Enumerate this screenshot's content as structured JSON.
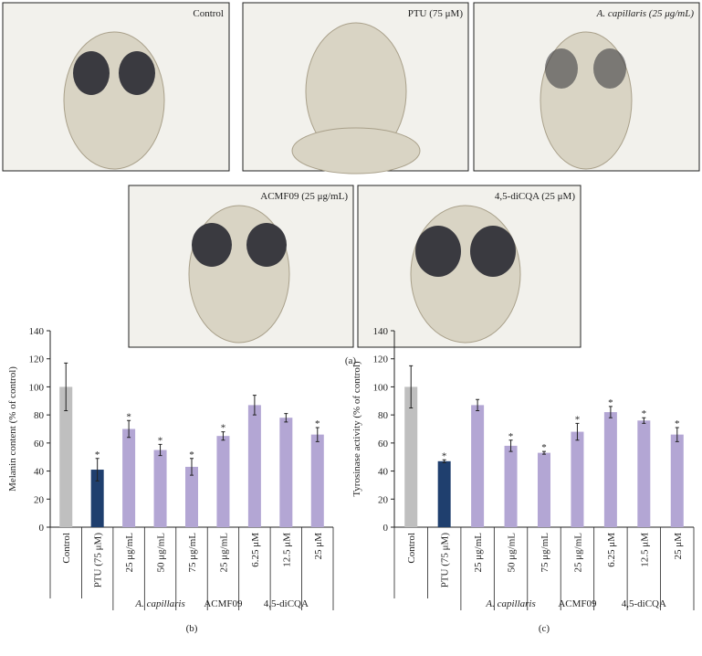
{
  "panels": [
    {
      "label": "Control"
    },
    {
      "label": "PTU (75 μM)"
    },
    {
      "label": "A. capillaris (25 μg/mL)"
    },
    {
      "label": "ACMF09 (25 μg/mL)"
    },
    {
      "label": "4,5-diCQA (25 μM)"
    }
  ],
  "figure_label": "(a)",
  "chart_data": [
    {
      "type": "bar",
      "panel_label": "(b)",
      "ylabel": "Melanin content (% of control)",
      "categories": [
        "Control",
        "PTU (75 μM)",
        "25 μg/mL",
        "50 μg/mL",
        "75 μg/mL",
        "25 μg/mL",
        "6.25 μM",
        "12.5 μM",
        "25 μM"
      ],
      "values": [
        100,
        41,
        70,
        55,
        43,
        65,
        87,
        78,
        66
      ],
      "errors": [
        17,
        8,
        6,
        4,
        6,
        3,
        7,
        3,
        5
      ],
      "significant": [
        false,
        true,
        true,
        true,
        true,
        true,
        false,
        false,
        true
      ],
      "significance_marker": "*",
      "colors": [
        "#bfbfbf",
        "#1f3f6e",
        "#b3a6d4",
        "#b3a6d4",
        "#b3a6d4",
        "#b3a6d4",
        "#b3a6d4",
        "#b3a6d4",
        "#b3a6d4"
      ],
      "groups": [
        {
          "label": "A. capillaris",
          "span": [
            2,
            4
          ]
        },
        {
          "label": "ACMF09",
          "span": [
            5,
            5
          ]
        },
        {
          "label": "4,5-diCQA",
          "span": [
            6,
            8
          ]
        }
      ],
      "ylim": [
        0,
        140
      ],
      "yticks": [
        0,
        20,
        40,
        60,
        80,
        100,
        120,
        140
      ]
    },
    {
      "type": "bar",
      "panel_label": "(c)",
      "ylabel": "Tyrosinase activity (% of control)",
      "categories": [
        "Control",
        "PTU (75 μM)",
        "25 μg/mL",
        "50 μg/mL",
        "75 μg/mL",
        "25 μg/mL",
        "6.25 μM",
        "12.5 μM",
        "25 μM"
      ],
      "values": [
        100,
        47,
        87,
        58,
        53,
        68,
        82,
        76,
        66
      ],
      "errors": [
        15,
        1,
        4,
        4,
        1,
        6,
        4,
        2,
        5
      ],
      "significant": [
        false,
        true,
        false,
        true,
        true,
        true,
        true,
        true,
        true
      ],
      "significance_marker": "*",
      "colors": [
        "#bfbfbf",
        "#1f3f6e",
        "#b3a6d4",
        "#b3a6d4",
        "#b3a6d4",
        "#b3a6d4",
        "#b3a6d4",
        "#b3a6d4",
        "#b3a6d4"
      ],
      "groups": [
        {
          "label": "A. capillaris",
          "span": [
            2,
            4
          ]
        },
        {
          "label": "ACMF09",
          "span": [
            5,
            5
          ]
        },
        {
          "label": "4,5-diCQA",
          "span": [
            6,
            8
          ]
        }
      ],
      "ylim": [
        0,
        140
      ],
      "yticks": [
        0,
        20,
        40,
        60,
        80,
        100,
        120,
        140
      ]
    }
  ]
}
